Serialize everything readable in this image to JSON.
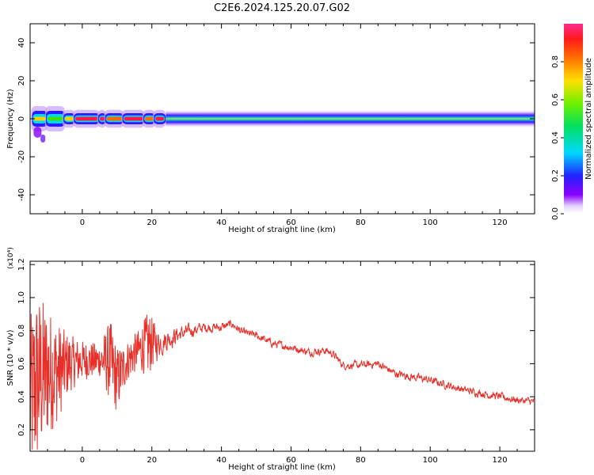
{
  "title": "C2E6.2024.125.20.07.G02",
  "colors": {
    "snr_line": "#e8302a",
    "axis": "#000000",
    "background": "#ffffff"
  },
  "chart_data": [
    {
      "type": "heatmap",
      "name": "spectrogram",
      "xlabel": "Height of straight line (km)",
      "ylabel": "Frequency (Hz)",
      "xlim": [
        -15,
        130
      ],
      "ylim": [
        -50,
        50
      ],
      "x_ticks": [
        0,
        20,
        40,
        60,
        80,
        100,
        120
      ],
      "y_ticks": [
        -40,
        -20,
        0,
        20,
        40
      ],
      "colorscale": "rainbow (purple-blue-cyan-green-yellow-orange-red-magenta)",
      "colorbar": {
        "label": "Normalized spectral amplitude",
        "range": [
          0,
          1
        ],
        "ticks": [
          0.0,
          0.2,
          0.4,
          0.6,
          0.8
        ]
      },
      "band_center_hz": 0,
      "band_halfwidth_hz": 3,
      "peak_amplitude_by_height": [
        {
          "x": -14,
          "amp": 0.75
        },
        {
          "x": -10,
          "amp": 0.65
        },
        {
          "x": -5,
          "amp": 0.8
        },
        {
          "x": -2,
          "amp": 0.95
        },
        {
          "x": 5,
          "amp": 1.0
        },
        {
          "x": 7,
          "amp": 0.85
        },
        {
          "x": 12,
          "amp": 0.95
        },
        {
          "x": 18,
          "amp": 0.85
        },
        {
          "x": 21,
          "amp": 1.0
        },
        {
          "x": 25,
          "amp": 0.6
        },
        {
          "x": 40,
          "amp": 0.55
        },
        {
          "x": 60,
          "amp": 0.55
        },
        {
          "x": 80,
          "amp": 0.55
        },
        {
          "x": 100,
          "amp": 0.55
        },
        {
          "x": 130,
          "amp": 0.5
        }
      ]
    },
    {
      "type": "line",
      "name": "snr",
      "xlabel": "Height of straight line (km)",
      "ylabel": "SNR (10 * v/v)",
      "y_multiplier": "(x10⁴)",
      "xlim": [
        -15,
        130
      ],
      "ylim": [
        0.07,
        1.22
      ],
      "x_ticks": [
        0,
        20,
        40,
        60,
        80,
        100,
        120
      ],
      "y_ticks": [
        0.2,
        0.4,
        0.6,
        0.8,
        1.0,
        1.2
      ],
      "envelope": [
        {
          "x": -15,
          "y": 0.38,
          "spread": 0.5
        },
        {
          "x": -13,
          "y": 0.5,
          "spread": 0.55
        },
        {
          "x": -10,
          "y": 0.55,
          "spread": 0.4
        },
        {
          "x": -7,
          "y": 0.55,
          "spread": 0.3
        },
        {
          "x": -4,
          "y": 0.6,
          "spread": 0.18
        },
        {
          "x": 0,
          "y": 0.62,
          "spread": 0.12
        },
        {
          "x": 5,
          "y": 0.62,
          "spread": 0.1
        },
        {
          "x": 8,
          "y": 0.62,
          "spread": 0.25
        },
        {
          "x": 10,
          "y": 0.5,
          "spread": 0.2
        },
        {
          "x": 13,
          "y": 0.62,
          "spread": 0.12
        },
        {
          "x": 16,
          "y": 0.68,
          "spread": 0.12
        },
        {
          "x": 19,
          "y": 0.72,
          "spread": 0.2
        },
        {
          "x": 22,
          "y": 0.73,
          "spread": 0.07
        },
        {
          "x": 28,
          "y": 0.78,
          "spread": 0.04
        },
        {
          "x": 35,
          "y": 0.82,
          "spread": 0.025
        },
        {
          "x": 40,
          "y": 0.82,
          "spread": 0.025
        },
        {
          "x": 43,
          "y": 0.84,
          "spread": 0.02
        },
        {
          "x": 46,
          "y": 0.79,
          "spread": 0.02
        },
        {
          "x": 50,
          "y": 0.77,
          "spread": 0.02
        },
        {
          "x": 55,
          "y": 0.72,
          "spread": 0.02
        },
        {
          "x": 60,
          "y": 0.7,
          "spread": 0.02
        },
        {
          "x": 65,
          "y": 0.67,
          "spread": 0.02
        },
        {
          "x": 70,
          "y": 0.68,
          "spread": 0.02
        },
        {
          "x": 72,
          "y": 0.66,
          "spread": 0.02
        },
        {
          "x": 75,
          "y": 0.59,
          "spread": 0.02
        },
        {
          "x": 80,
          "y": 0.59,
          "spread": 0.02
        },
        {
          "x": 85,
          "y": 0.6,
          "spread": 0.02
        },
        {
          "x": 90,
          "y": 0.54,
          "spread": 0.02
        },
        {
          "x": 100,
          "y": 0.5,
          "spread": 0.02
        },
        {
          "x": 110,
          "y": 0.44,
          "spread": 0.02
        },
        {
          "x": 120,
          "y": 0.4,
          "spread": 0.02
        },
        {
          "x": 125,
          "y": 0.38,
          "spread": 0.02
        },
        {
          "x": 130,
          "y": 0.37,
          "spread": 0.02
        }
      ]
    }
  ]
}
